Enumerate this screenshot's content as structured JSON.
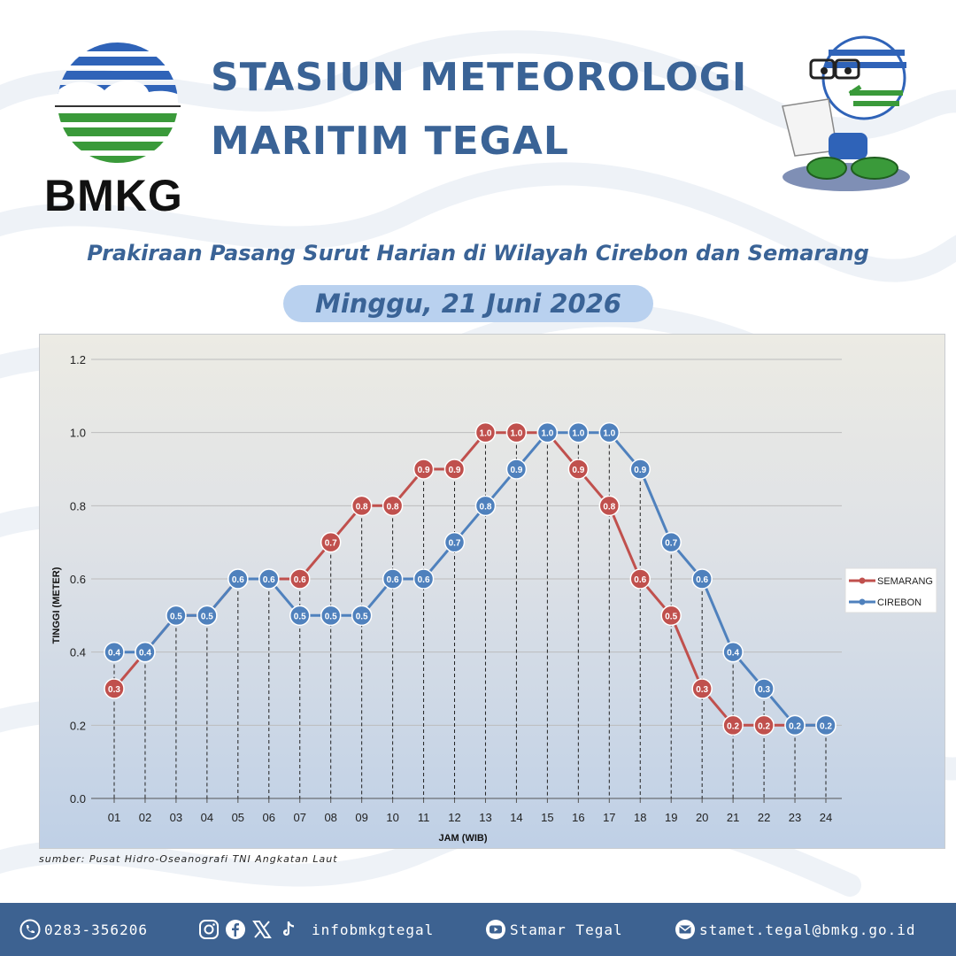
{
  "header": {
    "logo_text": "BMKG",
    "title_line1": "STASIUN METEOROLOGI",
    "title_line2": "MARITIM TEGAL"
  },
  "subtitle": "Prakiraan Pasang Surut Harian di Wilayah Cirebon dan Semarang",
  "date": "Minggu, 21 Juni 2026",
  "chart_data": {
    "type": "line",
    "x": [
      "01",
      "02",
      "03",
      "04",
      "05",
      "06",
      "07",
      "08",
      "09",
      "10",
      "11",
      "12",
      "13",
      "14",
      "15",
      "16",
      "17",
      "18",
      "19",
      "20",
      "21",
      "22",
      "23",
      "24"
    ],
    "series": [
      {
        "name": "SEMARANG",
        "color": "#c0504d",
        "values": [
          0.3,
          0.4,
          0.5,
          0.5,
          0.6,
          0.6,
          0.6,
          0.7,
          0.8,
          0.8,
          0.9,
          0.9,
          1.0,
          1.0,
          1.0,
          0.9,
          0.8,
          0.6,
          0.5,
          0.3,
          0.2,
          0.2,
          0.2,
          0.2
        ]
      },
      {
        "name": "CIREBON",
        "color": "#4f81bd",
        "values": [
          0.4,
          0.4,
          0.5,
          0.5,
          0.6,
          0.6,
          0.5,
          0.5,
          0.5,
          0.6,
          0.6,
          0.7,
          0.8,
          0.9,
          1.0,
          1.0,
          1.0,
          0.9,
          0.7,
          0.6,
          0.4,
          0.3,
          0.2,
          0.2
        ]
      }
    ],
    "yticks": [
      "0.0",
      "0.2",
      "0.4",
      "0.6",
      "0.8",
      "1.0",
      "1.2"
    ],
    "ylim": [
      0,
      1.2
    ],
    "xlabel": "JAM (WIB)",
    "ylabel": "TINGGI (METER)",
    "grid": "horizontal",
    "legend_position": "right"
  },
  "source": "sumber: Pusat Hidro-Oseanografi TNI Angkatan Laut",
  "footer": {
    "phone": "0283-356206",
    "social": "infobmkgtegal",
    "youtube": "Stamar Tegal",
    "email": "stamet.tegal@bmkg.go.id"
  },
  "colors": {
    "brand_blue": "#3a6396",
    "footer_bg": "#3d6291",
    "pill": "#b9d1ef"
  }
}
